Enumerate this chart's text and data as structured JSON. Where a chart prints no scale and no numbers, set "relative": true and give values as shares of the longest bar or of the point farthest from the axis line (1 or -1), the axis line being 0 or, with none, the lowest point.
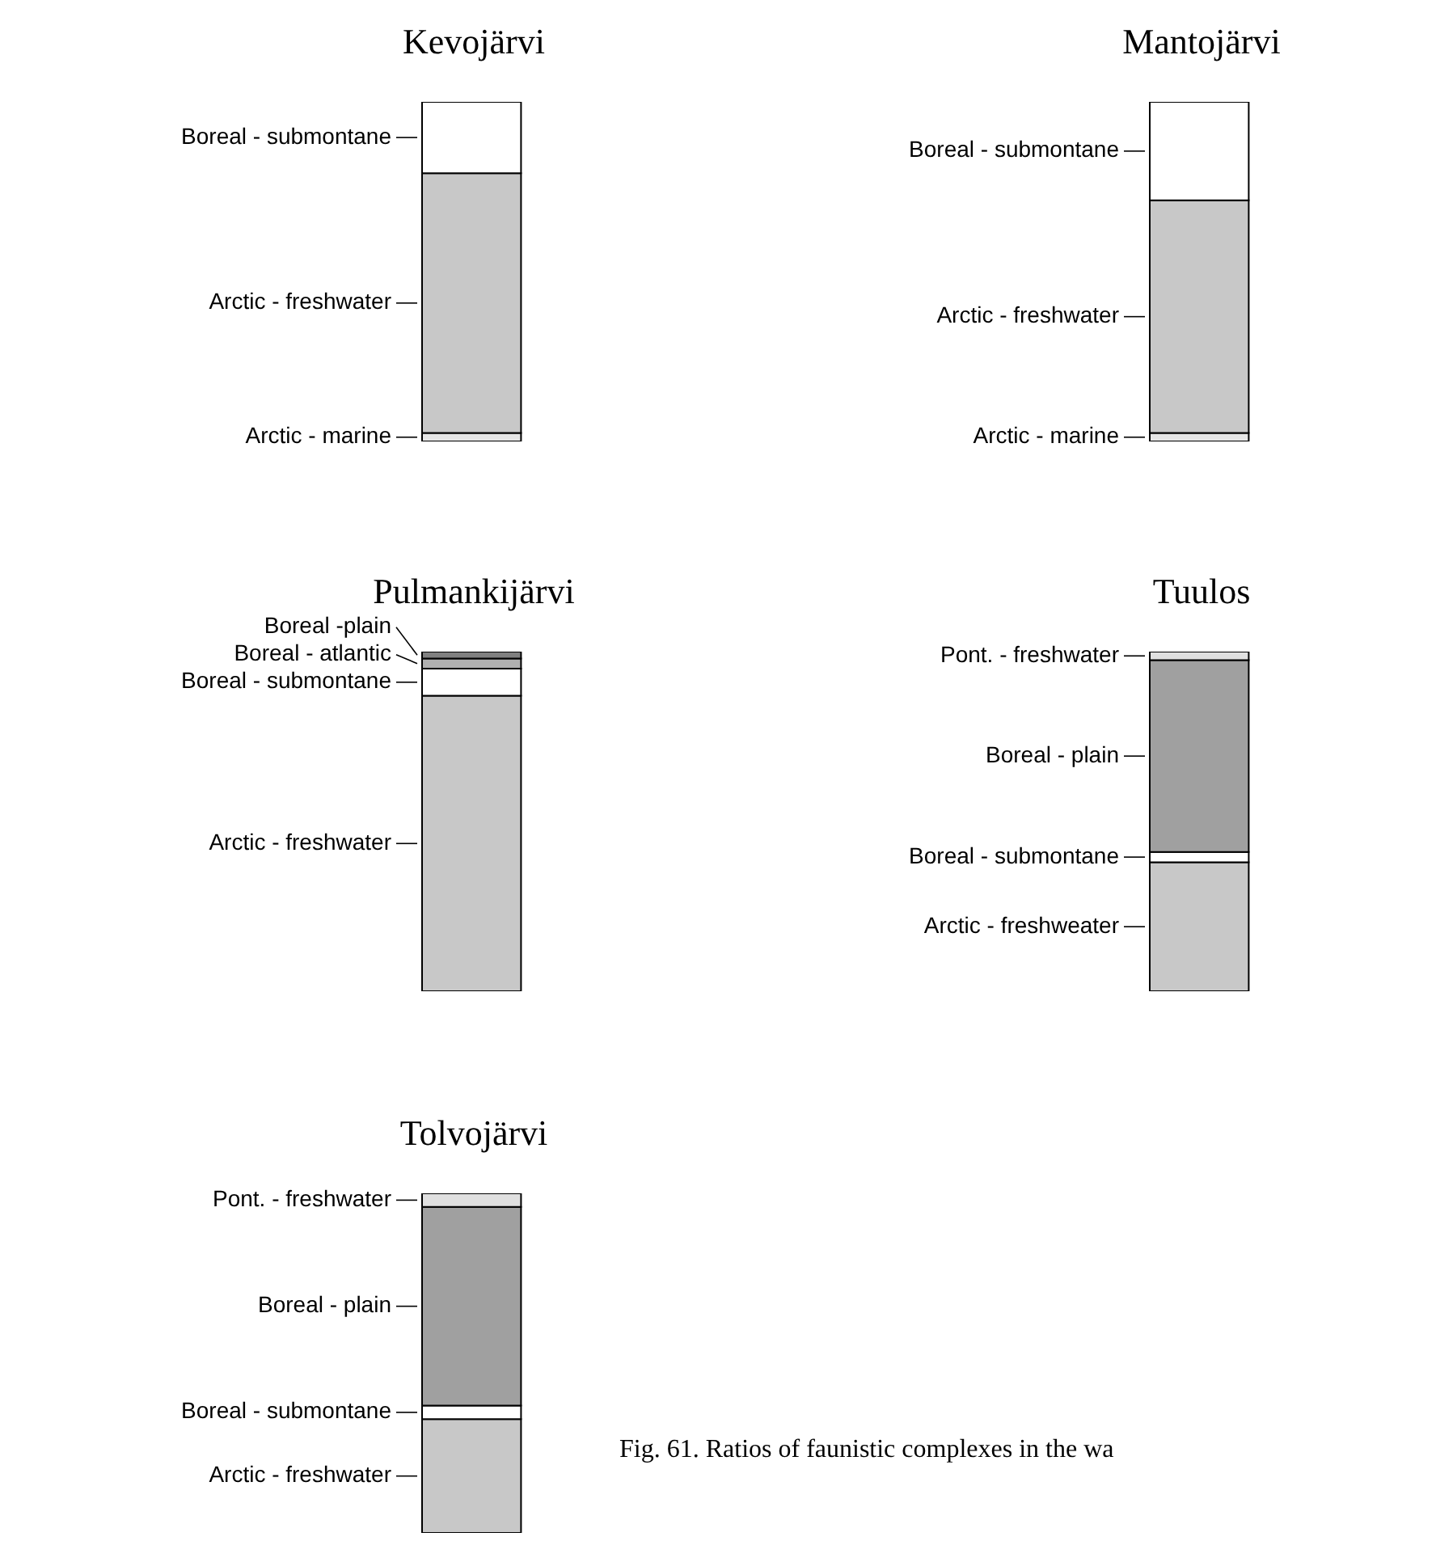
{
  "chart_data": [
    {
      "type": "bar",
      "title": "Kevojärvi",
      "stacked": true,
      "relative": true,
      "legend": "left",
      "categories": [
        null
      ],
      "series": [
        {
          "name": "Arctic - marine",
          "color": "#e6e6e6",
          "values": [
            0.025
          ]
        },
        {
          "name": "Arctic - freshwater",
          "color": "#c8c8c8",
          "values": [
            0.765
          ]
        },
        {
          "name": "Boreal - submontane",
          "color": "#ffffff",
          "values": [
            0.21
          ]
        }
      ]
    },
    {
      "type": "bar",
      "title": "Mantojärvi",
      "stacked": true,
      "relative": true,
      "legend": "left",
      "categories": [
        null
      ],
      "series": [
        {
          "name": "Arctic - marine",
          "color": "#e6e6e6",
          "values": [
            0.025
          ]
        },
        {
          "name": "Arctic - freshwater",
          "color": "#c8c8c8",
          "values": [
            0.685
          ]
        },
        {
          "name": "Boreal - submontane",
          "color": "#ffffff",
          "values": [
            0.29
          ]
        }
      ]
    },
    {
      "type": "bar",
      "title": "Pulmankijärvi",
      "stacked": true,
      "relative": true,
      "legend": "left",
      "categories": [
        null
      ],
      "series": [
        {
          "name": "Arctic - freshwater",
          "color": "#c8c8c8",
          "values": [
            0.87
          ]
        },
        {
          "name": "Boreal - submontane",
          "color": "#ffffff",
          "values": [
            0.08
          ]
        },
        {
          "name": "Boreal - atlantic",
          "color": "#b0b0b0",
          "values": [
            0.03
          ]
        },
        {
          "name": "Boreal -plain",
          "color": "#808080",
          "values": [
            0.02
          ]
        }
      ]
    },
    {
      "type": "bar",
      "title": "Tuulos",
      "stacked": true,
      "relative": true,
      "legend": "left",
      "categories": [
        null
      ],
      "series": [
        {
          "name": "Arctic - freshweater",
          "color": "#c8c8c8",
          "values": [
            0.38
          ]
        },
        {
          "name": "Boreal - submontane",
          "color": "#ffffff",
          "values": [
            0.03
          ]
        },
        {
          "name": "Boreal - plain",
          "color": "#a0a0a0",
          "values": [
            0.565
          ]
        },
        {
          "name": "Pont. - freshwater",
          "color": "#e0e0e0",
          "values": [
            0.025
          ]
        }
      ]
    },
    {
      "type": "bar",
      "title": "Tolvojärvi",
      "stacked": true,
      "relative": true,
      "legend": "left",
      "categories": [
        null
      ],
      "annotations": [
        "Fig. 61. Ratios of faunistic complexes in the wa"
      ],
      "series": [
        {
          "name": "Arctic - freshwater",
          "color": "#c8c8c8",
          "values": [
            0.335
          ]
        },
        {
          "name": "Boreal - submontane",
          "color": "#ffffff",
          "values": [
            0.04
          ]
        },
        {
          "name": "Boreal - plain",
          "color": "#a0a0a0",
          "values": [
            0.585
          ]
        },
        {
          "name": "Pont. - freshwater",
          "color": "#e0e0e0",
          "values": [
            0.04
          ]
        }
      ]
    }
  ]
}
